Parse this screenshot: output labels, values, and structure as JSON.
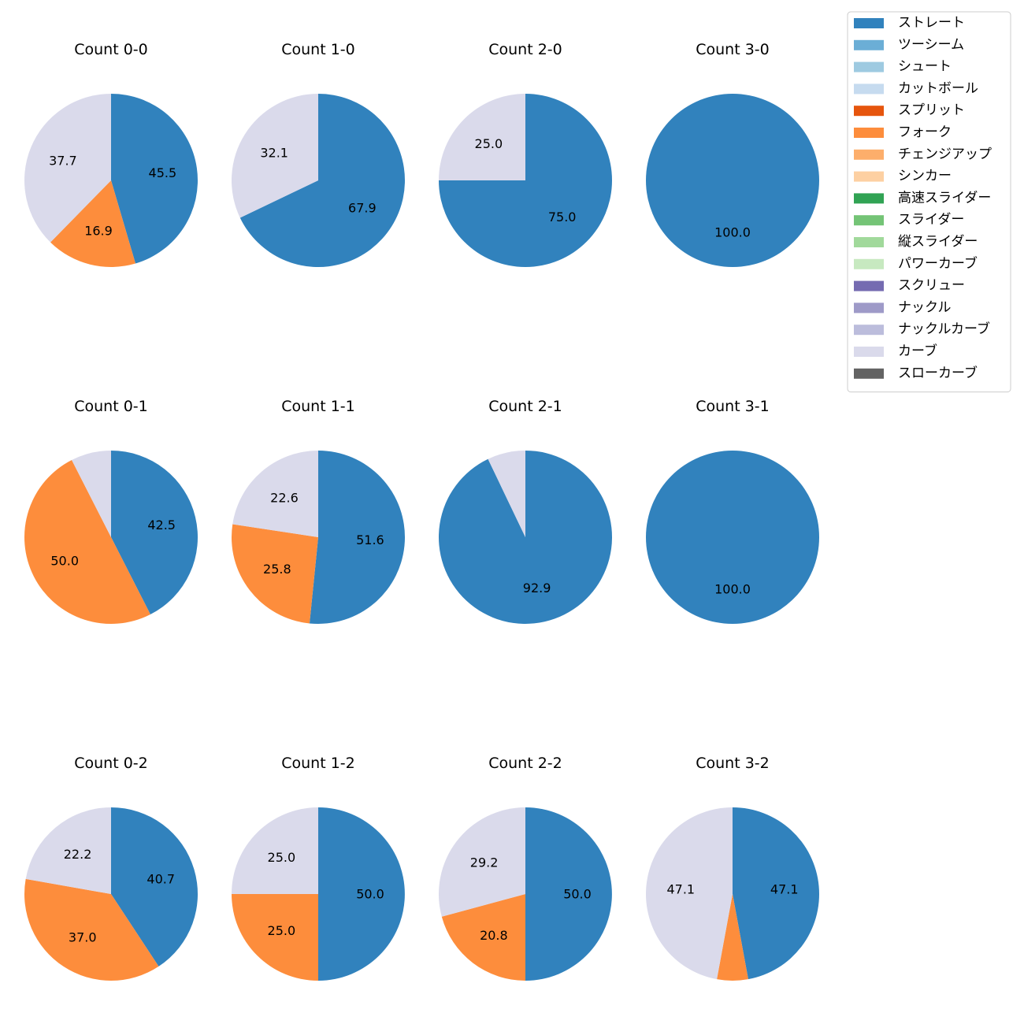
{
  "chart_data": {
    "type": "pie",
    "legend": {
      "placement": "top-right",
      "entries": [
        {
          "label": "ストレート",
          "color": "#3182bd"
        },
        {
          "label": "ツーシーム",
          "color": "#6baed6"
        },
        {
          "label": "シュート",
          "color": "#9ecae1"
        },
        {
          "label": "カットボール",
          "color": "#c6dbef"
        },
        {
          "label": "スプリット",
          "color": "#e6550d"
        },
        {
          "label": "フォーク",
          "color": "#fd8d3c"
        },
        {
          "label": "チェンジアップ",
          "color": "#fdae6b"
        },
        {
          "label": "シンカー",
          "color": "#fdd0a2"
        },
        {
          "label": "高速スライダー",
          "color": "#31a354"
        },
        {
          "label": "スライダー",
          "color": "#74c476"
        },
        {
          "label": "縦スライダー",
          "color": "#a1d99b"
        },
        {
          "label": "パワーカーブ",
          "color": "#c7e9c0"
        },
        {
          "label": "スクリュー",
          "color": "#756bb1"
        },
        {
          "label": "ナックル",
          "color": "#9e9ac8"
        },
        {
          "label": "ナックルカーブ",
          "color": "#bcbddc"
        },
        {
          "label": "カーブ",
          "color": "#dadaeb"
        },
        {
          "label": "スローカーブ",
          "color": "#636363"
        }
      ]
    },
    "charts": [
      {
        "title": "Count 0-0",
        "slices": [
          {
            "pitch": "ストレート",
            "value": 45.5,
            "label": "45.5"
          },
          {
            "pitch": "フォーク",
            "value": 16.9,
            "label": "16.9"
          },
          {
            "pitch": "カーブ",
            "value": 37.7,
            "label": "37.7"
          }
        ]
      },
      {
        "title": "Count 1-0",
        "slices": [
          {
            "pitch": "ストレート",
            "value": 67.9,
            "label": "67.9"
          },
          {
            "pitch": "カーブ",
            "value": 32.1,
            "label": "32.1"
          }
        ]
      },
      {
        "title": "Count 2-0",
        "slices": [
          {
            "pitch": "ストレート",
            "value": 75.0,
            "label": "75.0"
          },
          {
            "pitch": "カーブ",
            "value": 25.0,
            "label": "25.0"
          }
        ]
      },
      {
        "title": "Count 3-0",
        "slices": [
          {
            "pitch": "ストレート",
            "value": 100.0,
            "label": "100.0"
          }
        ]
      },
      {
        "title": "Count 0-1",
        "slices": [
          {
            "pitch": "ストレート",
            "value": 42.5,
            "label": "42.5"
          },
          {
            "pitch": "フォーク",
            "value": 50.0,
            "label": "50.0"
          },
          {
            "pitch": "カーブ",
            "value": 7.5,
            "label": ""
          }
        ]
      },
      {
        "title": "Count 1-1",
        "slices": [
          {
            "pitch": "ストレート",
            "value": 51.6,
            "label": "51.6"
          },
          {
            "pitch": "フォーク",
            "value": 25.8,
            "label": "25.8"
          },
          {
            "pitch": "カーブ",
            "value": 22.6,
            "label": "22.6"
          }
        ]
      },
      {
        "title": "Count 2-1",
        "slices": [
          {
            "pitch": "ストレート",
            "value": 92.9,
            "label": "92.9"
          },
          {
            "pitch": "カーブ",
            "value": 7.1,
            "label": ""
          }
        ]
      },
      {
        "title": "Count 3-1",
        "slices": [
          {
            "pitch": "ストレート",
            "value": 100.0,
            "label": "100.0"
          }
        ]
      },
      {
        "title": "Count 0-2",
        "slices": [
          {
            "pitch": "ストレート",
            "value": 40.7,
            "label": "40.7"
          },
          {
            "pitch": "フォーク",
            "value": 37.0,
            "label": "37.0"
          },
          {
            "pitch": "カーブ",
            "value": 22.2,
            "label": "22.2"
          }
        ]
      },
      {
        "title": "Count 1-2",
        "slices": [
          {
            "pitch": "ストレート",
            "value": 50.0,
            "label": "50.0"
          },
          {
            "pitch": "フォーク",
            "value": 25.0,
            "label": "25.0"
          },
          {
            "pitch": "カーブ",
            "value": 25.0,
            "label": "25.0"
          }
        ]
      },
      {
        "title": "Count 2-2",
        "slices": [
          {
            "pitch": "ストレート",
            "value": 50.0,
            "label": "50.0"
          },
          {
            "pitch": "フォーク",
            "value": 20.8,
            "label": "20.8"
          },
          {
            "pitch": "カーブ",
            "value": 29.2,
            "label": "29.2"
          }
        ]
      },
      {
        "title": "Count 3-2",
        "slices": [
          {
            "pitch": "ストレート",
            "value": 47.1,
            "label": "47.1"
          },
          {
            "pitch": "フォーク",
            "value": 5.8,
            "label": ""
          },
          {
            "pitch": "カーブ",
            "value": 47.1,
            "label": "47.1"
          }
        ]
      }
    ]
  }
}
